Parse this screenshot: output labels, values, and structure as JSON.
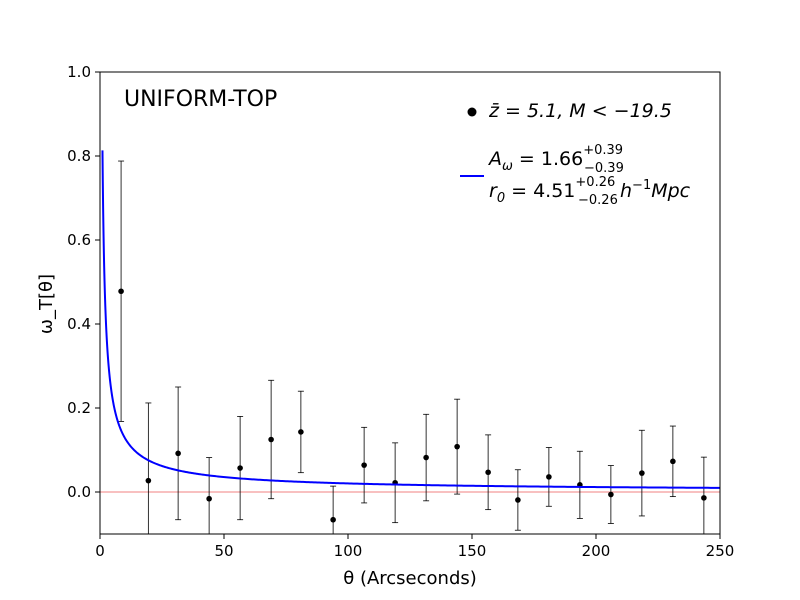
{
  "chart_data": {
    "type": "scatter",
    "title": "UNIFORM-TOP",
    "xlabel": "θ (Arcseconds)",
    "ylabel": "ω_T[θ]",
    "xlim": [
      0,
      250
    ],
    "ylim": [
      -0.1,
      1.0
    ],
    "xticks": [
      0,
      50,
      100,
      150,
      200,
      250
    ],
    "yticks": [
      0.0,
      0.2,
      0.4,
      0.6,
      0.8,
      1.0
    ],
    "grid": false,
    "legend_position": "top-right",
    "colors": {
      "points": "#000000",
      "fit": "#0000ff",
      "zero_line": "#f08080"
    },
    "series": [
      {
        "name": "z̄ = 5.1,  M < −19.5",
        "kind": "points_with_errorbars",
        "x": [
          8.5,
          19.5,
          31.5,
          44,
          56.5,
          69,
          81,
          94,
          106.5,
          119,
          131.5,
          144,
          156.5,
          168.5,
          181,
          193.5,
          206,
          218.5,
          231,
          243.5
        ],
        "y": [
          0.478,
          0.027,
          0.092,
          -0.016,
          0.057,
          0.125,
          0.143,
          -0.066,
          0.064,
          0.022,
          0.082,
          0.108,
          0.047,
          -0.019,
          0.036,
          0.017,
          -0.006,
          0.045,
          0.073,
          -0.014
        ],
        "yerr": [
          0.31,
          0.185,
          0.158,
          0.098,
          0.123,
          0.141,
          0.097,
          0.08,
          0.09,
          0.095,
          0.103,
          0.113,
          0.089,
          0.072,
          0.07,
          0.08,
          0.069,
          0.102,
          0.084,
          0.097
        ]
      },
      {
        "name": "A_ω = 1.66 (+0.39 / −0.39)   r_0 = 4.51 (+0.26 / −0.26) h⁻¹Mpc",
        "kind": "power_law_fit",
        "amplitude": 1.66,
        "exponent": -0.8,
        "x_range": [
          1,
          250
        ]
      }
    ],
    "reference_line": {
      "y": 0.0
    },
    "legend": {
      "points": {
        "prefix": "z̄ = 5.1,  M < −19.5"
      },
      "fit_line1": {
        "base": "A",
        "base_sub": "ω",
        "value": " = 1.66",
        "sup": "+0.39",
        "sub": "−0.39"
      },
      "fit_line2": {
        "base": "r",
        "base_sub": "0",
        "value": " = 4.51",
        "sup": "+0.26",
        "sub": "−0.26",
        "tail": "h",
        "tail_sup": "−1",
        "unit": "Mpc"
      }
    }
  }
}
